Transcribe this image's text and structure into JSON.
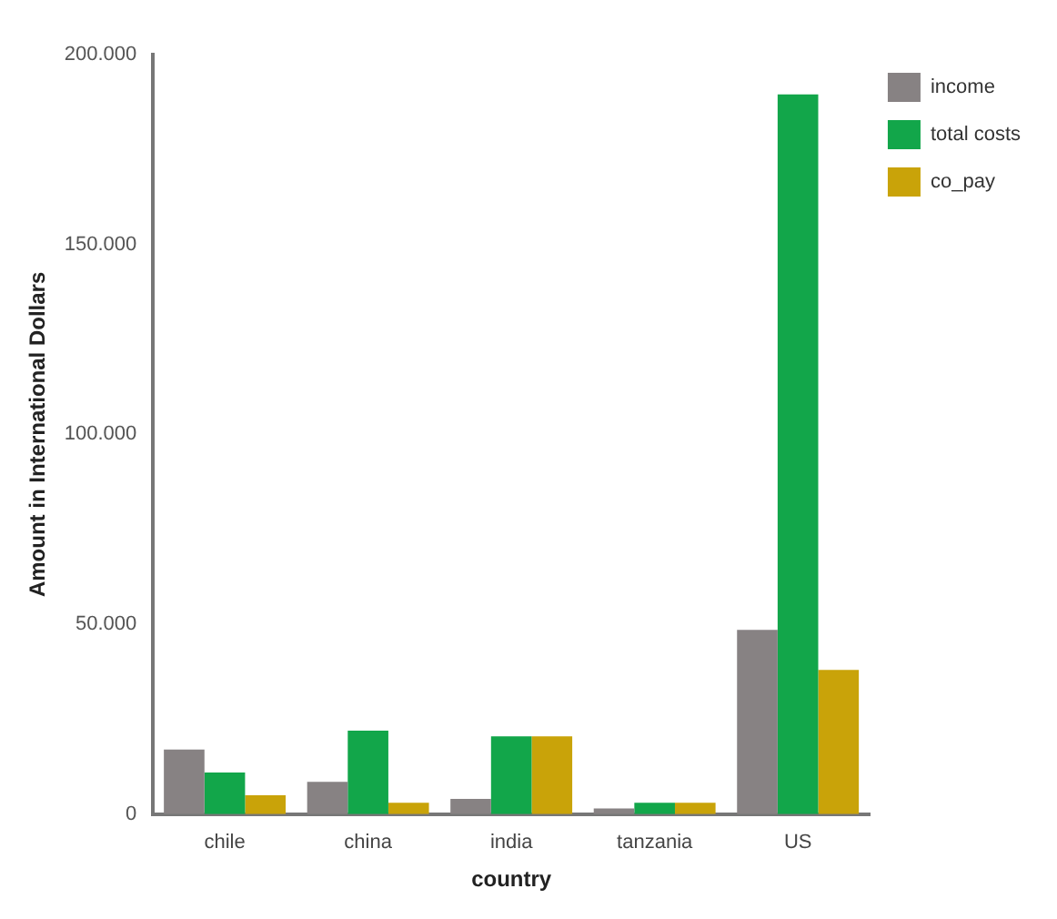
{
  "chart_data": {
    "type": "bar",
    "xlabel": "country",
    "ylabel": "Amount in International Dollars",
    "categories": [
      "chile",
      "china",
      "india",
      "tanzania",
      "US"
    ],
    "series": [
      {
        "name": "income",
        "color": "#878283",
        "values": [
          17000,
          8500,
          4000,
          1500,
          48500
        ]
      },
      {
        "name": "total costs",
        "color": "#12a64a",
        "values": [
          11000,
          22000,
          20500,
          3000,
          189500
        ]
      },
      {
        "name": "co_pay",
        "color": "#c9a309",
        "values": [
          5000,
          3000,
          20500,
          3000,
          38000
        ]
      }
    ],
    "ylim": [
      0,
      200000
    ],
    "yticks": [
      {
        "value": 0,
        "label": "0"
      },
      {
        "value": 50000,
        "label": "50.000"
      },
      {
        "value": 100000,
        "label": "100.000"
      },
      {
        "value": 150000,
        "label": "150.000"
      },
      {
        "value": 200000,
        "label": "200.000"
      }
    ],
    "grid": false,
    "legend": "top right"
  }
}
